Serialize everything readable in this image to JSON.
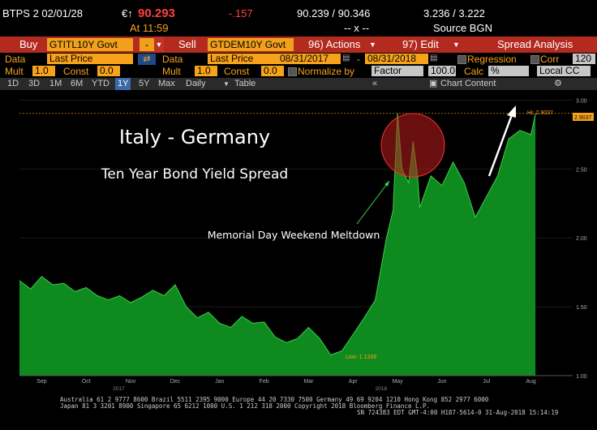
{
  "header": {
    "ticker": "BTPS 2 02/01/28",
    "currency_arrow": "€↑",
    "price": "90.293",
    "change": "-.157",
    "bid_ask": "90.239 / 90.346",
    "yield_bid_ask": "3.236 / 3.222",
    "time": "At 11:59",
    "size": "-- x --",
    "source": "Source BGN"
  },
  "toolbar": {
    "buy_label": "Buy",
    "buy_security": "GTITL10Y Govt",
    "minus_label": "-",
    "sell_label": "Sell",
    "sell_security": "GTDEM10Y Govt",
    "actions_label": "96) Actions",
    "edit_label": "97) Edit",
    "spread_label": "Spread Analysis"
  },
  "data_row": {
    "data_label_1": "Data",
    "data_value_1": "Last Price",
    "data_label_2": "Data",
    "data_value_2": "Last Price",
    "start_date": "08/31/2017",
    "end_date": "08/31/2018",
    "regression_label": "Regression",
    "corr_label": "Corr",
    "corr_value": "120"
  },
  "mult_row": {
    "mult_label_1": "Mult",
    "mult_value_1": "1.0",
    "const_label_1": "Const",
    "const_value_1": "0.0",
    "mult_label_2": "Mult",
    "mult_value_2": "1.0",
    "const_label_2": "Const",
    "const_value_2": "0.0",
    "normalize_label": "Normalize by",
    "normalize_value": "Factor",
    "factor_value": "100.0",
    "calc_label": "Calc",
    "calc_value": "%",
    "currency_value": "Local CC"
  },
  "tabs": [
    "1D",
    "3D",
    "1M",
    "6M",
    "YTD",
    "1Y",
    "5Y",
    "Max"
  ],
  "active_tab": "1Y",
  "period": "Daily",
  "table_label": "Table",
  "chart_content_label": "Chart Content",
  "colors": {
    "fill": "#0f8a1e",
    "line": "#3bd04a",
    "accent": "#f7a21b",
    "toolbar": "#b32a1f"
  },
  "chart_data": {
    "type": "area",
    "title": "Italy - Germany",
    "subtitle": "Ten Year Bond Yield Spread",
    "annotation": "Memorial Day Weekend Meltdown",
    "low_label": "Low: 1.1339",
    "high_label": "Hi: 2.9037",
    "last_label": "2.9037",
    "x_ticks": [
      "Sep",
      "Oct",
      "Nov",
      "Dec",
      "Jan",
      "Feb",
      "Mar",
      "Apr",
      "May",
      "Jun",
      "Jul",
      "Aug"
    ],
    "year_labels": [
      "2017",
      "2018"
    ],
    "y_ticks": [
      "3.00",
      "2.50",
      "2.00",
      "1.50",
      "1.00"
    ],
    "ylim": [
      1.0,
      3.05
    ],
    "x": [
      0,
      0.25,
      0.5,
      0.75,
      1,
      1.25,
      1.5,
      1.75,
      2,
      2.25,
      2.5,
      2.75,
      3,
      3.25,
      3.5,
      3.75,
      4,
      4.25,
      4.5,
      4.75,
      5,
      5.25,
      5.5,
      5.75,
      6,
      6.25,
      6.5,
      6.75,
      7,
      7.25,
      7.5,
      7.75,
      8,
      8.25,
      8.4,
      8.5,
      8.6,
      8.75,
      8.85,
      8.95,
      9,
      9.25,
      9.5,
      9.75,
      10,
      10.25,
      10.5,
      10.75,
      11,
      11.25,
      11.5,
      11.6
    ],
    "values": [
      1.69,
      1.63,
      1.72,
      1.66,
      1.67,
      1.61,
      1.64,
      1.58,
      1.55,
      1.58,
      1.53,
      1.57,
      1.62,
      1.58,
      1.66,
      1.5,
      1.42,
      1.46,
      1.38,
      1.35,
      1.43,
      1.38,
      1.39,
      1.28,
      1.24,
      1.27,
      1.35,
      1.27,
      1.15,
      1.18,
      1.3,
      1.42,
      1.55,
      2.0,
      2.2,
      2.9037,
      2.5,
      2.4,
      2.7,
      2.45,
      2.22,
      2.45,
      2.38,
      2.55,
      2.4,
      2.15,
      2.3,
      2.45,
      2.72,
      2.78,
      2.75,
      2.9037
    ]
  },
  "footer": {
    "line1": "Australia 61 2 9777 8600 Brazil 5511 2395 9000 Europe 44 20 7330 7500 Germany 49 69 9204 1210 Hong Kong 852 2977 6000",
    "line2": "Japan 81 3 3201 8900        Singapore 65 6212 1000     U.S. 1 212 318 2000          Copyright 2018 Bloomberg Finance L.P.",
    "line3": "SN 724383 EDT  GMT-4:00 H187-5614-0 31-Aug-2018 15:14:19"
  }
}
